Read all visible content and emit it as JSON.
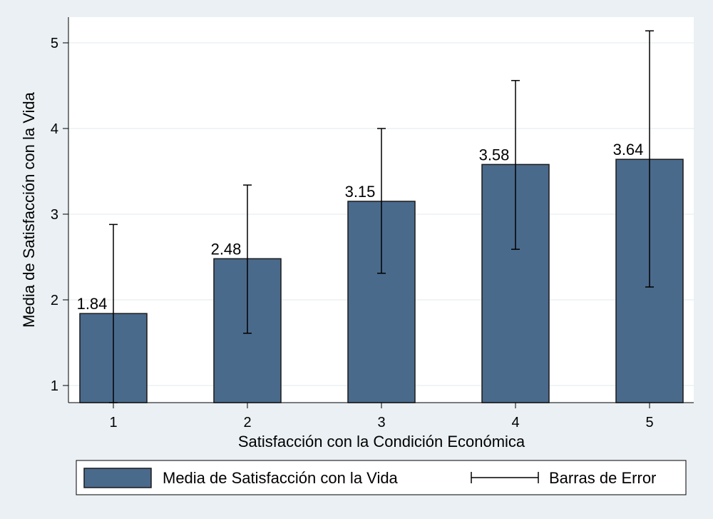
{
  "chart_data": {
    "type": "bar",
    "categories": [
      "1",
      "2",
      "3",
      "4",
      "5"
    ],
    "series": [
      {
        "name": "Media de Satisfacción con la Vida",
        "values": [
          1.84,
          2.48,
          3.15,
          3.58,
          3.64
        ],
        "error_low": [
          0.8,
          1.61,
          2.31,
          2.59,
          2.15
        ],
        "error_high": [
          2.88,
          3.34,
          4.0,
          4.56,
          5.14
        ]
      }
    ],
    "data_labels": [
      "1.84",
      "2.48",
      "3.15",
      "3.58",
      "3.64"
    ],
    "title": "",
    "xlabel": "Satisfacción con la Condición Económica",
    "ylabel": "Media de Satisfacción con la Vida",
    "ylim": [
      0.8,
      5.3
    ],
    "bar_base": 0.8,
    "yticks": [
      1,
      2,
      3,
      4,
      5
    ],
    "grid": true,
    "legend": {
      "placement": "bottom",
      "entries": [
        "Media de Satisfacción con la Vida",
        "Barras de Error"
      ]
    },
    "colors": {
      "bar_fill": "#4a6a8c",
      "bar_stroke": "#1a1a1a",
      "plot_background": "#ffffff",
      "page_background": "#eaf0f3",
      "grid": "#e2eaee"
    }
  }
}
